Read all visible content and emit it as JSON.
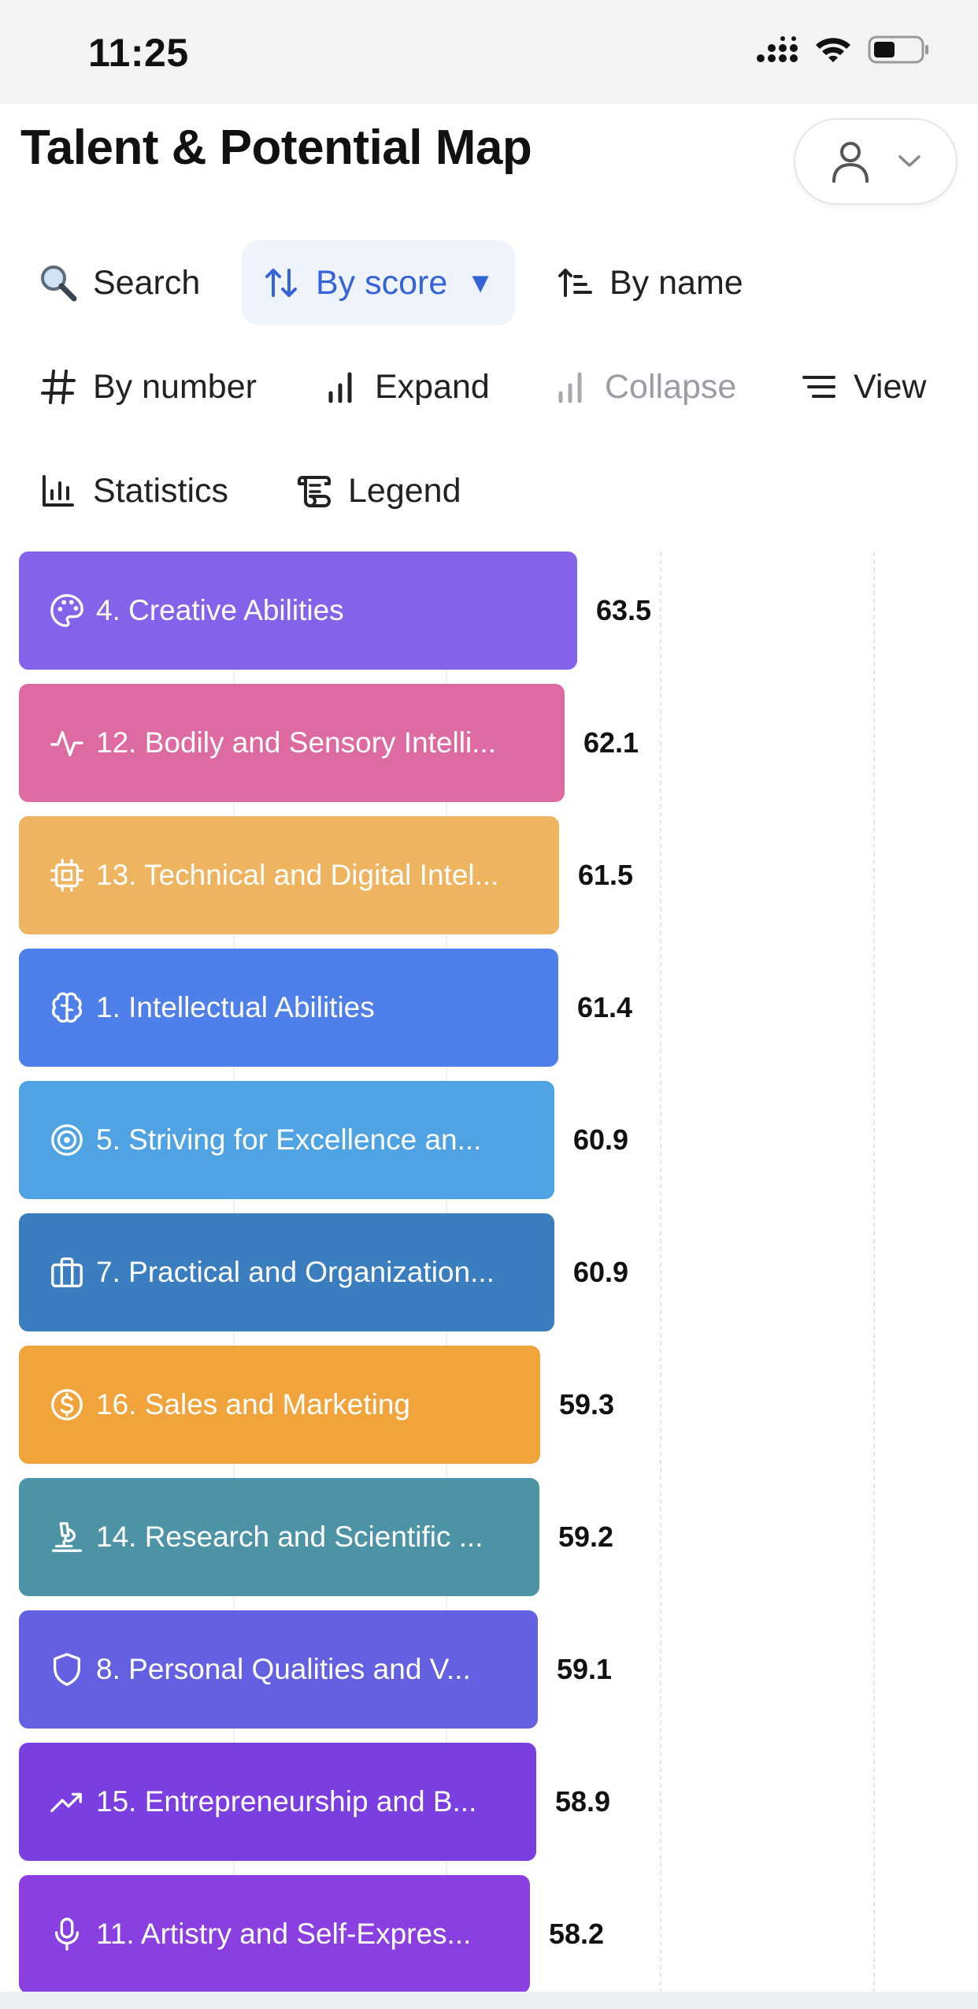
{
  "status_bar": {
    "time": "11:25"
  },
  "header": {
    "title": "Talent & Potential Map"
  },
  "toolbar": {
    "search": "Search",
    "by_score": "By score",
    "by_name": "By name",
    "by_number": "By number",
    "expand": "Expand",
    "collapse": "Collapse",
    "view": "View",
    "statistics": "Statistics",
    "legend": "Legend"
  },
  "colors": {
    "accent": "#3563d8",
    "active_bg": "#eef3fc"
  },
  "chart_data": {
    "type": "bar",
    "orientation": "horizontal",
    "sort": "By score",
    "xlim": [
      0,
      95
    ],
    "categories": [
      "4. Creative Abilities",
      "12. Bodily and Sensory Intelli...",
      "13. Technical and Digital Intel...",
      "1. Intellectual Abilities",
      "5. Striving for Excellence an...",
      "7. Practical and Organization...",
      "16. Sales and Marketing",
      "14. Research and Scientific ...",
      "8. Personal Qualities and V...",
      "15. Entrepreneurship and B...",
      "11. Artistry and Self-Expres..."
    ],
    "values": [
      "63.5",
      "62.1",
      "61.5",
      "61.4",
      "60.9",
      "60.9",
      "59.3",
      "59.2",
      "59.1",
      "58.9",
      "58.2"
    ],
    "colors": [
      "#8562ea",
      "#dd6aa0",
      "#eeb45f",
      "#4f7fe9",
      "#4fa3e3",
      "#3a7ec0",
      "#f1a43b",
      "#4c93a6",
      "#6460e2",
      "#7b3ee0",
      "#8a3fe0"
    ],
    "icons": [
      "palette-icon",
      "activity-icon",
      "cpu-icon",
      "brain-icon",
      "target-icon",
      "briefcase-icon",
      "dollar-icon",
      "microscope-icon",
      "shield-icon",
      "trending-up-icon",
      "mic-icon"
    ],
    "grid": true
  }
}
